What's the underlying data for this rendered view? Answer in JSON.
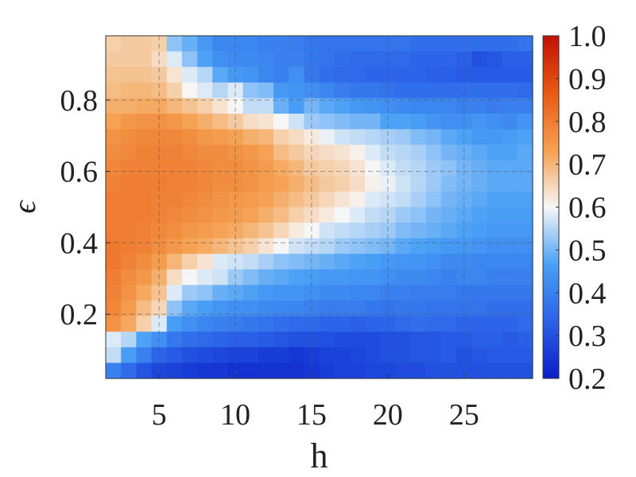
{
  "chart_data": {
    "type": "heatmap",
    "xlabel": "h",
    "ylabel": "ϵ",
    "x_range": [
      2,
      29
    ],
    "y_range": [
      0.02,
      0.98
    ],
    "xlim": [
      1.5,
      29.5
    ],
    "ylim": [
      0.02,
      0.98
    ],
    "x_ticks": [
      5,
      10,
      15,
      20,
      25
    ],
    "x_tick_labels": [
      "5",
      "10",
      "15",
      "20",
      "25"
    ],
    "y_ticks": [
      0.2,
      0.4,
      0.6,
      0.8
    ],
    "y_tick_labels": [
      "0.2",
      "0.4",
      "0.6",
      "0.8"
    ],
    "colorbar": {
      "range": [
        0.2,
        1.0
      ],
      "ticks": [
        0.2,
        0.3,
        0.4,
        0.5,
        0.6,
        0.7,
        0.8,
        0.9,
        1.0
      ],
      "tick_labels": [
        "0.2",
        "0.3",
        "0.4",
        "0.5",
        "0.6",
        "0.7",
        "0.8",
        "0.9",
        "1.0"
      ],
      "colormap": [
        "#0a1ec8",
        "#2a62e8",
        "#4aa0f6",
        "#f6f6f6",
        "#f5a050",
        "#e85a14",
        "#c21005"
      ]
    },
    "grid": true,
    "grid_style": "dashed",
    "values": [
      [
        0.66,
        0.67,
        0.67,
        0.66,
        0.52,
        0.49,
        0.45,
        0.41,
        0.41,
        0.41,
        0.4,
        0.4,
        0.39,
        0.38,
        0.37,
        0.37,
        0.37,
        0.37,
        0.37,
        0.37,
        0.36,
        0.36,
        0.36,
        0.36,
        0.36,
        0.36,
        0.36,
        0.37
      ],
      [
        0.67,
        0.67,
        0.67,
        0.64,
        0.58,
        0.52,
        0.47,
        0.43,
        0.42,
        0.42,
        0.41,
        0.4,
        0.4,
        0.38,
        0.37,
        0.36,
        0.35,
        0.35,
        0.35,
        0.35,
        0.34,
        0.34,
        0.34,
        0.33,
        0.3,
        0.31,
        0.33,
        0.33
      ],
      [
        0.68,
        0.68,
        0.68,
        0.67,
        0.63,
        0.58,
        0.55,
        0.48,
        0.45,
        0.44,
        0.41,
        0.4,
        0.43,
        0.38,
        0.36,
        0.35,
        0.35,
        0.34,
        0.34,
        0.34,
        0.34,
        0.33,
        0.33,
        0.32,
        0.32,
        0.32,
        0.32,
        0.32
      ],
      [
        0.69,
        0.7,
        0.7,
        0.69,
        0.66,
        0.6,
        0.58,
        0.55,
        0.58,
        0.52,
        0.51,
        0.45,
        0.44,
        0.43,
        0.41,
        0.39,
        0.38,
        0.38,
        0.37,
        0.36,
        0.36,
        0.36,
        0.36,
        0.36,
        0.36,
        0.36,
        0.36,
        0.35
      ],
      [
        0.71,
        0.71,
        0.72,
        0.72,
        0.7,
        0.68,
        0.66,
        0.63,
        0.6,
        0.56,
        0.56,
        0.49,
        0.46,
        0.5,
        0.48,
        0.47,
        0.45,
        0.44,
        0.43,
        0.42,
        0.41,
        0.41,
        0.41,
        0.4,
        0.4,
        0.39,
        0.4,
        0.4
      ],
      [
        0.73,
        0.75,
        0.76,
        0.76,
        0.75,
        0.73,
        0.71,
        0.69,
        0.67,
        0.64,
        0.63,
        0.6,
        0.57,
        0.53,
        0.52,
        0.51,
        0.5,
        0.5,
        0.47,
        0.47,
        0.46,
        0.44,
        0.43,
        0.43,
        0.44,
        0.43,
        0.42,
        0.44
      ],
      [
        0.76,
        0.77,
        0.78,
        0.78,
        0.78,
        0.77,
        0.75,
        0.74,
        0.73,
        0.71,
        0.7,
        0.66,
        0.64,
        0.62,
        0.59,
        0.57,
        0.56,
        0.55,
        0.54,
        0.53,
        0.51,
        0.5,
        0.48,
        0.47,
        0.45,
        0.45,
        0.46,
        0.47
      ],
      [
        0.77,
        0.78,
        0.79,
        0.79,
        0.79,
        0.78,
        0.77,
        0.77,
        0.76,
        0.75,
        0.73,
        0.69,
        0.67,
        0.65,
        0.64,
        0.63,
        0.61,
        0.58,
        0.56,
        0.55,
        0.54,
        0.52,
        0.5,
        0.49,
        0.48,
        0.47,
        0.47,
        0.48
      ],
      [
        0.78,
        0.79,
        0.79,
        0.79,
        0.79,
        0.79,
        0.78,
        0.77,
        0.77,
        0.76,
        0.74,
        0.72,
        0.7,
        0.67,
        0.66,
        0.65,
        0.63,
        0.6,
        0.58,
        0.56,
        0.55,
        0.53,
        0.52,
        0.5,
        0.49,
        0.48,
        0.48,
        0.48
      ],
      [
        0.79,
        0.8,
        0.8,
        0.8,
        0.79,
        0.79,
        0.78,
        0.77,
        0.77,
        0.76,
        0.74,
        0.73,
        0.71,
        0.69,
        0.67,
        0.66,
        0.64,
        0.61,
        0.59,
        0.57,
        0.55,
        0.53,
        0.51,
        0.5,
        0.49,
        0.48,
        0.48,
        0.48
      ],
      [
        0.8,
        0.8,
        0.8,
        0.79,
        0.79,
        0.78,
        0.77,
        0.76,
        0.75,
        0.74,
        0.73,
        0.71,
        0.69,
        0.67,
        0.65,
        0.63,
        0.61,
        0.58,
        0.57,
        0.56,
        0.54,
        0.52,
        0.5,
        0.49,
        0.48,
        0.47,
        0.47,
        0.47
      ],
      [
        0.8,
        0.8,
        0.8,
        0.79,
        0.78,
        0.77,
        0.76,
        0.75,
        0.74,
        0.73,
        0.71,
        0.69,
        0.66,
        0.64,
        0.62,
        0.6,
        0.58,
        0.56,
        0.55,
        0.53,
        0.52,
        0.5,
        0.49,
        0.48,
        0.47,
        0.46,
        0.46,
        0.46
      ],
      [
        0.8,
        0.8,
        0.79,
        0.78,
        0.77,
        0.75,
        0.74,
        0.73,
        0.72,
        0.7,
        0.68,
        0.65,
        0.62,
        0.6,
        0.57,
        0.56,
        0.55,
        0.54,
        0.53,
        0.51,
        0.5,
        0.49,
        0.48,
        0.47,
        0.46,
        0.45,
        0.45,
        0.45
      ],
      [
        0.81,
        0.8,
        0.79,
        0.77,
        0.75,
        0.73,
        0.72,
        0.7,
        0.68,
        0.66,
        0.63,
        0.6,
        0.57,
        0.56,
        0.55,
        0.53,
        0.52,
        0.51,
        0.5,
        0.48,
        0.47,
        0.46,
        0.45,
        0.45,
        0.44,
        0.43,
        0.43,
        0.43
      ],
      [
        0.81,
        0.79,
        0.77,
        0.74,
        0.7,
        0.66,
        0.63,
        0.58,
        0.57,
        0.56,
        0.54,
        0.52,
        0.51,
        0.5,
        0.49,
        0.48,
        0.47,
        0.46,
        0.45,
        0.44,
        0.44,
        0.43,
        0.42,
        0.42,
        0.41,
        0.41,
        0.41,
        0.41
      ],
      [
        0.8,
        0.77,
        0.75,
        0.71,
        0.64,
        0.6,
        0.58,
        0.57,
        0.53,
        0.51,
        0.49,
        0.48,
        0.47,
        0.46,
        0.45,
        0.45,
        0.44,
        0.44,
        0.43,
        0.42,
        0.42,
        0.41,
        0.4,
        0.41,
        0.41,
        0.4,
        0.4,
        0.4
      ],
      [
        0.79,
        0.76,
        0.72,
        0.68,
        0.58,
        0.53,
        0.52,
        0.49,
        0.48,
        0.47,
        0.45,
        0.44,
        0.44,
        0.43,
        0.42,
        0.42,
        0.41,
        0.41,
        0.4,
        0.4,
        0.39,
        0.39,
        0.39,
        0.38,
        0.38,
        0.38,
        0.38,
        0.38
      ],
      [
        0.78,
        0.74,
        0.69,
        0.65,
        0.52,
        0.48,
        0.46,
        0.44,
        0.43,
        0.43,
        0.42,
        0.41,
        0.41,
        0.4,
        0.39,
        0.39,
        0.39,
        0.38,
        0.37,
        0.38,
        0.38,
        0.37,
        0.37,
        0.37,
        0.37,
        0.36,
        0.36,
        0.36
      ],
      [
        0.76,
        0.72,
        0.66,
        0.58,
        0.46,
        0.43,
        0.41,
        0.4,
        0.39,
        0.38,
        0.37,
        0.36,
        0.35,
        0.35,
        0.34,
        0.34,
        0.33,
        0.34,
        0.34,
        0.35,
        0.36,
        0.35,
        0.35,
        0.34,
        0.34,
        0.34,
        0.34,
        0.35
      ],
      [
        0.58,
        0.55,
        0.47,
        0.43,
        0.38,
        0.36,
        0.35,
        0.34,
        0.33,
        0.33,
        0.32,
        0.31,
        0.3,
        0.3,
        0.3,
        0.29,
        0.29,
        0.29,
        0.3,
        0.3,
        0.31,
        0.31,
        0.32,
        0.32,
        0.33,
        0.33,
        0.32,
        0.33
      ],
      [
        0.56,
        0.46,
        0.4,
        0.34,
        0.32,
        0.3,
        0.29,
        0.28,
        0.27,
        0.27,
        0.26,
        0.26,
        0.25,
        0.26,
        0.27,
        0.27,
        0.28,
        0.29,
        0.3,
        0.3,
        0.31,
        0.31,
        0.32,
        0.3,
        0.31,
        0.32,
        0.32,
        0.32
      ],
      [
        0.4,
        0.35,
        0.31,
        0.28,
        0.27,
        0.26,
        0.25,
        0.25,
        0.24,
        0.24,
        0.24,
        0.24,
        0.24,
        0.25,
        0.26,
        0.27,
        0.27,
        0.28,
        0.28,
        0.29,
        0.29,
        0.3,
        0.3,
        0.3,
        0.3,
        0.3,
        0.3,
        0.3
      ]
    ]
  }
}
